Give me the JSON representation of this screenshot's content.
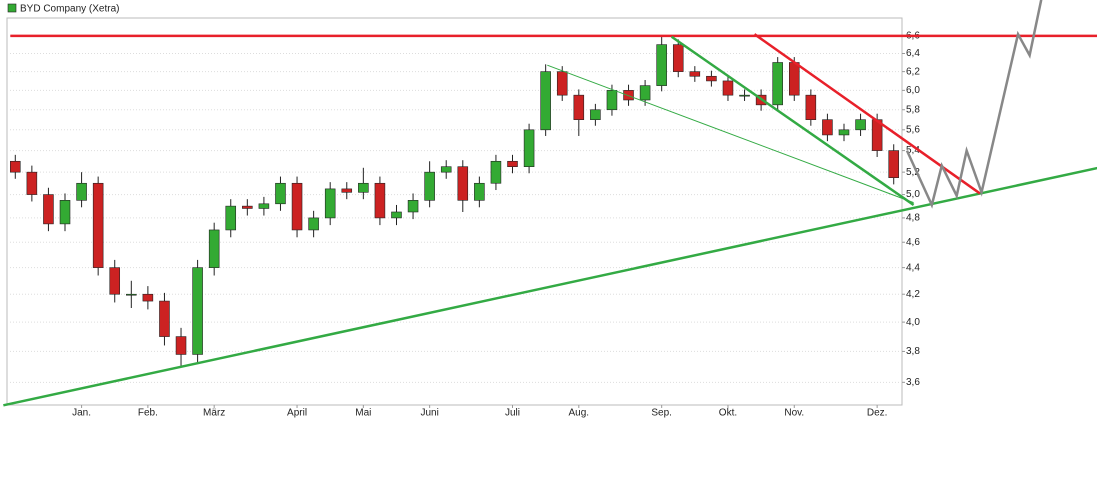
{
  "chart_data": {
    "type": "candlestick",
    "legend": "BYD Company (Xetra)",
    "legend_color": "#33aa33",
    "legend_position": "top-left",
    "up_color": "#33aa33",
    "down_color": "#cc2222",
    "log_scale": true,
    "grid": true,
    "categories": [
      null,
      null,
      null,
      null,
      "Jan.",
      null,
      null,
      null,
      "Feb.",
      null,
      null,
      null,
      "März",
      null,
      null,
      null,
      null,
      "April",
      null,
      null,
      null,
      "Mai",
      null,
      null,
      null,
      "Juni",
      null,
      null,
      null,
      null,
      "Juli",
      null,
      null,
      null,
      "Aug.",
      null,
      null,
      null,
      null,
      "Sep.",
      null,
      null,
      null,
      "Okt.",
      null,
      null,
      null,
      "Nov.",
      null,
      null,
      null,
      null,
      "Dez.",
      null
    ],
    "open": [
      5.3,
      5.2,
      5.0,
      4.75,
      4.95,
      5.1,
      4.4,
      4.2,
      4.2,
      4.15,
      3.9,
      3.78,
      4.4,
      4.7,
      4.9,
      4.88,
      4.92,
      5.1,
      4.7,
      4.8,
      5.05,
      5.02,
      5.1,
      4.8,
      4.85,
      4.95,
      5.2,
      5.25,
      4.95,
      5.1,
      5.3,
      5.25,
      5.6,
      6.2,
      5.95,
      5.7,
      5.8,
      6.0,
      5.9,
      6.05,
      6.5,
      6.2,
      6.15,
      6.1,
      5.95,
      5.95,
      5.85,
      6.3,
      5.95,
      5.7,
      5.55,
      5.6,
      5.7,
      5.4
    ],
    "high": [
      5.36,
      5.26,
      5.06,
      5.01,
      5.2,
      5.16,
      4.46,
      4.3,
      4.26,
      4.21,
      3.96,
      4.46,
      4.76,
      4.96,
      4.96,
      4.98,
      5.16,
      5.16,
      4.86,
      5.11,
      5.11,
      5.24,
      5.16,
      4.91,
      5.01,
      5.3,
      5.31,
      5.31,
      5.16,
      5.36,
      5.36,
      5.66,
      6.28,
      6.26,
      6.01,
      5.86,
      6.06,
      6.06,
      6.11,
      6.6,
      6.56,
      6.26,
      6.21,
      6.16,
      6.01,
      6.01,
      6.36,
      6.36,
      6.01,
      5.76,
      5.66,
      5.76,
      5.76,
      5.46
    ],
    "low": [
      5.14,
      4.94,
      4.69,
      4.69,
      4.89,
      4.34,
      4.14,
      4.1,
      4.09,
      3.84,
      3.7,
      3.72,
      4.34,
      4.64,
      4.82,
      4.82,
      4.86,
      4.64,
      4.64,
      4.74,
      4.96,
      4.96,
      4.74,
      4.74,
      4.79,
      4.89,
      5.14,
      4.85,
      4.89,
      5.04,
      5.19,
      5.19,
      5.54,
      5.89,
      5.54,
      5.64,
      5.74,
      5.84,
      5.84,
      5.99,
      6.14,
      6.09,
      6.04,
      5.89,
      5.89,
      5.79,
      5.79,
      5.89,
      5.64,
      5.49,
      5.49,
      5.54,
      5.34,
      5.09
    ],
    "close": [
      5.2,
      5.0,
      4.75,
      4.95,
      5.1,
      4.4,
      4.2,
      4.2,
      4.15,
      3.9,
      3.78,
      4.4,
      4.7,
      4.9,
      4.88,
      4.92,
      5.1,
      4.7,
      4.8,
      5.05,
      5.02,
      5.1,
      4.8,
      4.85,
      4.95,
      5.2,
      5.25,
      4.95,
      5.1,
      5.3,
      5.25,
      5.6,
      6.2,
      5.95,
      5.7,
      5.8,
      6.0,
      5.9,
      6.05,
      6.5,
      6.2,
      6.15,
      6.1,
      5.95,
      5.95,
      5.85,
      6.3,
      5.95,
      5.7,
      5.55,
      5.6,
      5.7,
      5.4,
      5.15
    ],
    "ylim": [
      3.46,
      6.81
    ],
    "yticks": [
      {
        "value": 3.6,
        "label": "3,6"
      },
      {
        "value": 3.8,
        "label": "3,8"
      },
      {
        "value": 4.0,
        "label": "4,0"
      },
      {
        "value": 4.2,
        "label": "4,2"
      },
      {
        "value": 4.4,
        "label": "4,4"
      },
      {
        "value": 4.6,
        "label": "4,6"
      },
      {
        "value": 4.8,
        "label": "4,8"
      },
      {
        "value": 5.0,
        "label": "5,0"
      },
      {
        "value": 5.2,
        "label": "5,2"
      },
      {
        "value": 5.4,
        "label": "5,4"
      },
      {
        "value": 5.6,
        "label": "5,6"
      },
      {
        "value": 5.8,
        "label": "5,8"
      },
      {
        "value": 6.0,
        "label": "6,0"
      },
      {
        "value": 6.2,
        "label": "6,2"
      },
      {
        "value": 6.4,
        "label": "6,4"
      },
      {
        "value": 6.6,
        "label": "6,6"
      }
    ],
    "trend_lines": [
      {
        "color": "#e8202a",
        "width": 2.5,
        "x": [
          -0.3,
          65.4
        ],
        "y": [
          6.6,
          6.6
        ]
      },
      {
        "color": "#33aa44",
        "width": 2.5,
        "x": [
          -0.72,
          65.36
        ],
        "y": [
          3.458,
          5.24
        ]
      },
      {
        "color": "#33aa44",
        "width": 1,
        "x": [
          32.1,
          54.2
        ],
        "y": [
          6.27,
          4.93
        ]
      },
      {
        "color": "#33aa44",
        "width": 2.5,
        "x": [
          39.6,
          54.2
        ],
        "y": [
          6.59,
          4.91
        ]
      },
      {
        "color": "#e8202a",
        "width": 2.5,
        "x": [
          44.6,
          58.2
        ],
        "y": [
          6.62,
          5.01
        ]
      },
      {
        "color": "#888888",
        "width": 2.5,
        "x": [
          53.8,
          55.3,
          55.9,
          56.8,
          57.4,
          58.3,
          60.5,
          61.2,
          61.9
        ],
        "y": [
          5.4,
          4.91,
          5.26,
          4.99,
          5.4,
          5.02,
          6.62,
          6.38,
          7.03
        ]
      }
    ]
  }
}
